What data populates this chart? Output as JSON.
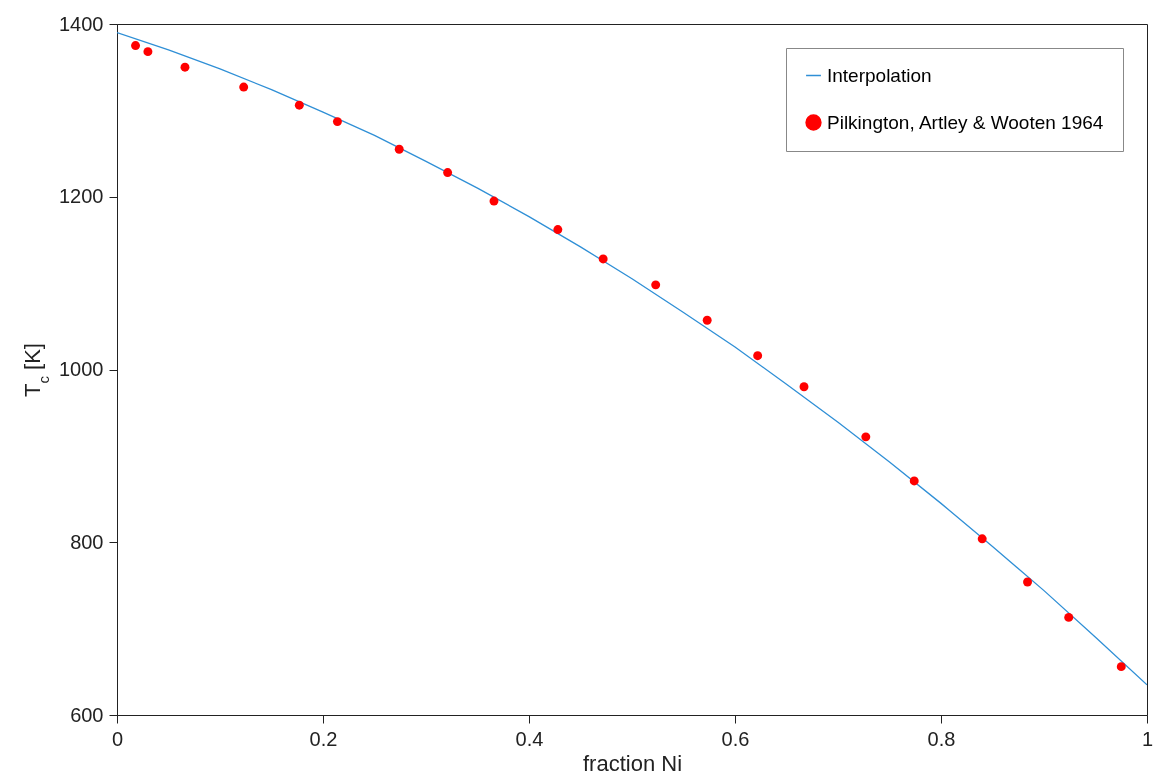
{
  "chart_data": {
    "type": "scatter",
    "xlabel": "fraction Ni",
    "ylabel": "T$_{c}$ [K]",
    "xlim": [
      0,
      1
    ],
    "ylim": [
      600,
      1400
    ],
    "xticks": [
      0,
      0.2,
      0.4,
      0.6,
      0.8,
      1
    ],
    "yticks": [
      600,
      800,
      1000,
      1200,
      1400
    ],
    "grid": false,
    "legend": "top right",
    "series": [
      {
        "name": "Interpolation",
        "type": "line",
        "color": "#2f8fd6",
        "x": [
          0,
          0.05,
          0.1,
          0.15,
          0.2,
          0.25,
          0.3,
          0.35,
          0.4,
          0.45,
          0.5,
          0.55,
          0.6,
          0.65,
          0.7,
          0.75,
          0.8,
          0.85,
          0.9,
          0.95,
          1
        ],
        "values": [
          1390,
          1370,
          1348,
          1324,
          1298,
          1271,
          1241,
          1210,
          1177,
          1142,
          1105,
          1066,
          1026,
          983,
          939,
          893,
          845,
          795,
          744,
          690,
          635
        ]
      },
      {
        "name": "Pilkington, Artley & Wooten 1964",
        "color": "#ff0000",
        "x": [
          0.018,
          0.03,
          0.066,
          0.123,
          0.177,
          0.214,
          0.274,
          0.321,
          0.366,
          0.428,
          0.472,
          0.523,
          0.573,
          0.622,
          0.667,
          0.727,
          0.774,
          0.84,
          0.884,
          0.924,
          0.975
        ],
        "values": [
          1375,
          1368,
          1350,
          1327,
          1306,
          1287,
          1255,
          1228,
          1195,
          1162,
          1128,
          1098,
          1057,
          1016,
          980,
          922,
          871,
          804,
          754,
          713,
          656
        ]
      }
    ]
  }
}
